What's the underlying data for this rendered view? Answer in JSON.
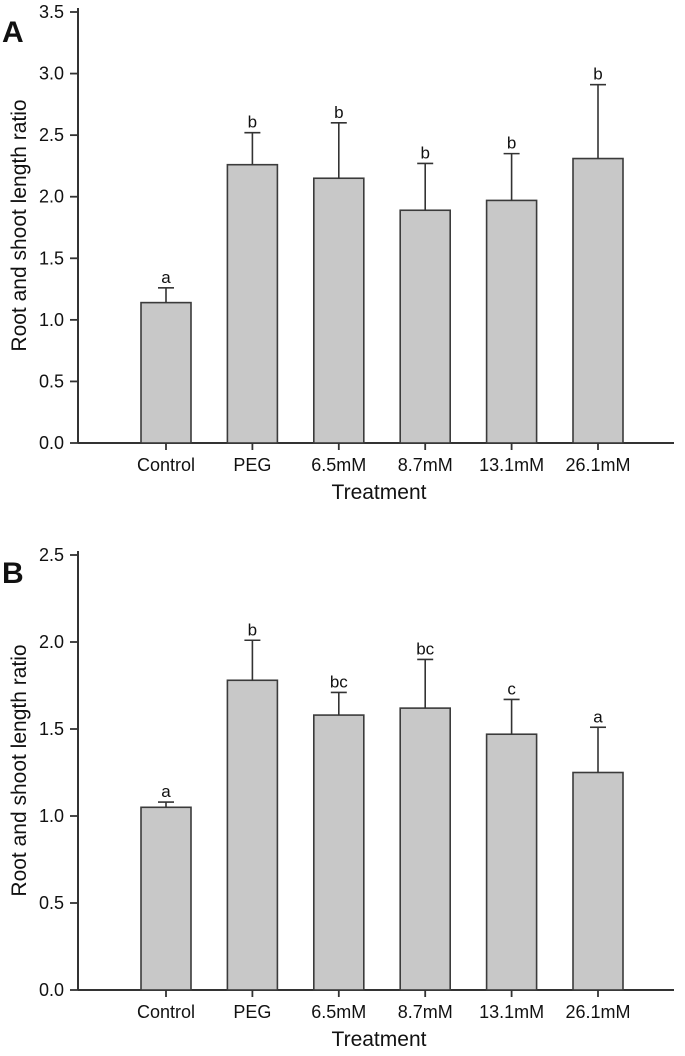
{
  "figure": {
    "background": "#ffffff",
    "bar_fill": "#c8c8c8",
    "bar_edge": "#3b3b3b",
    "axis_color": "#333333",
    "text_color": "#111111"
  },
  "chart_data": [
    {
      "type": "bar",
      "panel_label": "A",
      "title": "",
      "xlabel": "Treatment",
      "ylabel": "Root and shoot length ratio",
      "categories": [
        "Control",
        "PEG",
        "6.5mM",
        "8.7mM",
        "13.1mM",
        "26.1mM"
      ],
      "values": [
        1.14,
        2.26,
        2.15,
        1.89,
        1.97,
        2.31
      ],
      "error_up": [
        0.12,
        0.26,
        0.45,
        0.38,
        0.38,
        0.6
      ],
      "sig_letters": [
        "a",
        "b",
        "b",
        "b",
        "b",
        "b"
      ],
      "ylim": [
        0,
        3.5
      ],
      "ytick_step": 0.5,
      "ytick_labels": [
        "0.0",
        "0.5",
        "1.0",
        "1.5",
        "2.0",
        "2.5",
        "3.0",
        "3.5"
      ],
      "grid": false,
      "legend": null
    },
    {
      "type": "bar",
      "panel_label": "B",
      "title": "",
      "xlabel": "Treatment",
      "ylabel": "Root and shoot length ratio",
      "categories": [
        "Control",
        "PEG",
        "6.5mM",
        "8.7mM",
        "13.1mM",
        "26.1mM"
      ],
      "values": [
        1.05,
        1.78,
        1.58,
        1.62,
        1.47,
        1.25
      ],
      "error_up": [
        0.03,
        0.23,
        0.13,
        0.28,
        0.2,
        0.26
      ],
      "sig_letters": [
        "a",
        "b",
        "bc",
        "bc",
        "c",
        "a"
      ],
      "ylim": [
        0,
        2.5
      ],
      "ytick_step": 0.5,
      "ytick_labels": [
        "0.0",
        "0.5",
        "1.0",
        "1.5",
        "2.0",
        "2.5"
      ],
      "grid": false,
      "legend": null
    }
  ]
}
